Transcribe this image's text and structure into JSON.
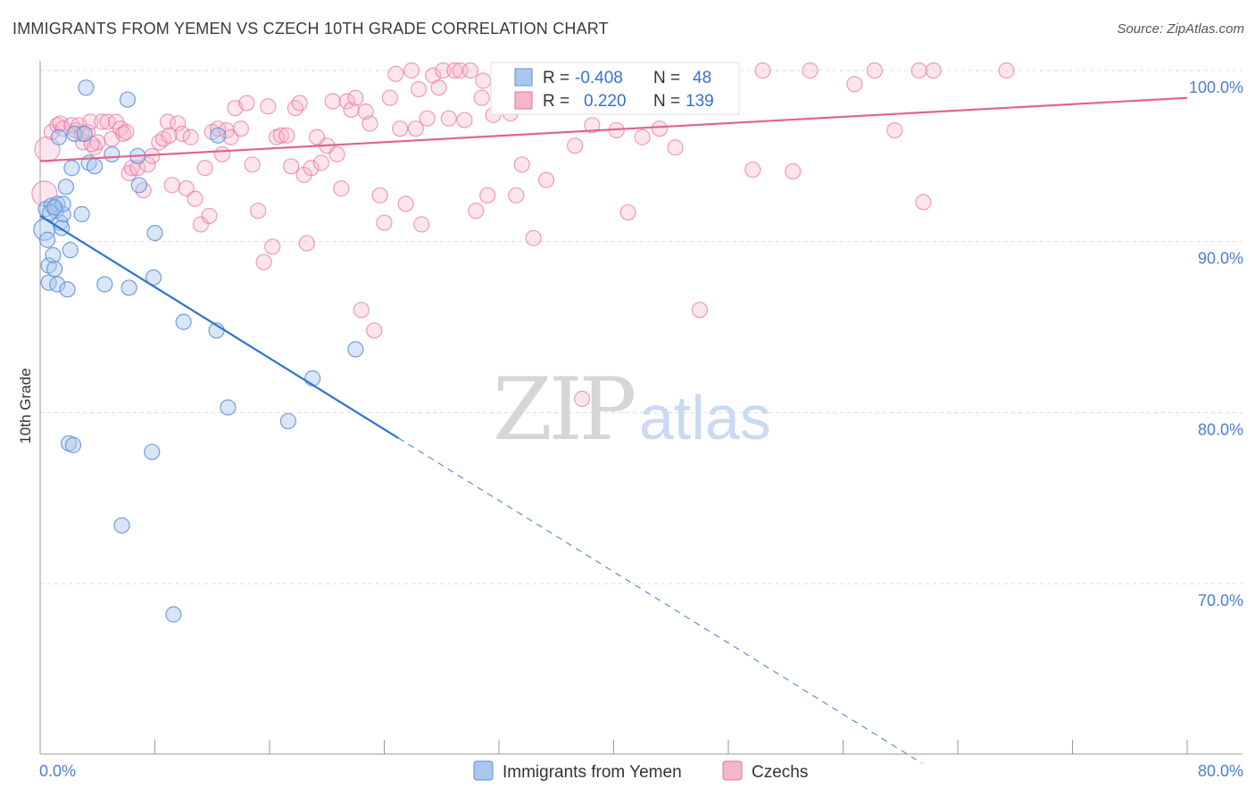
{
  "title": "IMMIGRANTS FROM YEMEN VS CZECH 10TH GRADE CORRELATION CHART",
  "source": "Source: ZipAtlas.com",
  "watermark": {
    "zip": "ZIP",
    "atlas": "atlas"
  },
  "colors": {
    "blue": "#5b8fd8",
    "blue_fill": "#aac8ee",
    "pink": "#e8739a",
    "pink_fill": "#f5b5ca",
    "grid": "#d9d9d9",
    "axis": "#999999",
    "label": "#4a7fcf"
  },
  "legend": {
    "rows": [
      {
        "r_label": "R =",
        "r_value": "-0.408",
        "n_label": "N =",
        "n_value": "48"
      },
      {
        "r_label": "R =",
        "r_value": "0.220",
        "n_label": "N =",
        "n_value": "139"
      }
    ]
  },
  "chart_data": {
    "type": "scatter",
    "title": "IMMIGRANTS FROM YEMEN VS CZECH 10TH GRADE CORRELATION CHART",
    "xlabel": "",
    "ylabel": "10th Grade",
    "xlim": [
      0,
      80
    ],
    "ylim": [
      60,
      100
    ],
    "x_tick_labels": [
      "0.0%",
      "80.0%"
    ],
    "y_tick_labels": [
      "100.0%",
      "90.0%",
      "80.0%",
      "70.0%"
    ],
    "y_ticks": [
      100,
      90,
      80,
      70
    ],
    "series": [
      {
        "name": "Immigrants from Yemen",
        "r": -0.408,
        "n": 48,
        "trend": {
          "x0": 0,
          "y0": 91.5,
          "x1": 25,
          "y1": 78.5,
          "dashed_to_x": 61.5,
          "dashed_to_y": 59.5
        },
        "points": [
          [
            0.3,
            90.7
          ],
          [
            0.4,
            91.9
          ],
          [
            0.5,
            90.1
          ],
          [
            0.6,
            88.6
          ],
          [
            0.6,
            87.6
          ],
          [
            0.8,
            92.1
          ],
          [
            0.9,
            89.2
          ],
          [
            1.0,
            88.4
          ],
          [
            1.1,
            91.8
          ],
          [
            1.2,
            92.2
          ],
          [
            1.2,
            87.5
          ],
          [
            1.3,
            96.1
          ],
          [
            1.4,
            91.1
          ],
          [
            1.5,
            90.8
          ],
          [
            1.6,
            91.6
          ],
          [
            1.6,
            92.2
          ],
          [
            1.8,
            93.2
          ],
          [
            1.9,
            87.2
          ],
          [
            2.0,
            78.2
          ],
          [
            2.1,
            89.5
          ],
          [
            2.2,
            94.3
          ],
          [
            2.3,
            78.1
          ],
          [
            2.4,
            96.3
          ],
          [
            2.9,
            91.6
          ],
          [
            3.1,
            96.3
          ],
          [
            3.2,
            99.0
          ],
          [
            3.4,
            94.6
          ],
          [
            3.8,
            94.4
          ],
          [
            4.5,
            87.5
          ],
          [
            5.0,
            95.1
          ],
          [
            5.7,
            73.4
          ],
          [
            6.1,
            98.3
          ],
          [
            6.2,
            87.3
          ],
          [
            6.8,
            95.0
          ],
          [
            6.9,
            93.3
          ],
          [
            7.8,
            77.7
          ],
          [
            7.9,
            87.9
          ],
          [
            8.0,
            90.5
          ],
          [
            9.3,
            68.2
          ],
          [
            10.0,
            85.3
          ],
          [
            12.3,
            84.8
          ],
          [
            12.4,
            96.2
          ],
          [
            13.1,
            80.3
          ],
          [
            17.3,
            79.5
          ],
          [
            19.0,
            82.0
          ],
          [
            22.0,
            83.7
          ],
          [
            0.7,
            91.7
          ],
          [
            1.0,
            92.0
          ]
        ]
      },
      {
        "name": "Czechs",
        "r": 0.22,
        "n": 139,
        "trend": {
          "x0": 0,
          "y0": 94.7,
          "x1": 80,
          "y1": 98.4
        },
        "points": [
          [
            0.3,
            92.8
          ],
          [
            0.5,
            95.4
          ],
          [
            0.8,
            96.4
          ],
          [
            1.2,
            96.8
          ],
          [
            1.4,
            96.9
          ],
          [
            1.6,
            96.6
          ],
          [
            2.2,
            96.8
          ],
          [
            2.5,
            96.5
          ],
          [
            2.7,
            96.8
          ],
          [
            2.9,
            96.3
          ],
          [
            3.0,
            95.8
          ],
          [
            3.3,
            96.4
          ],
          [
            3.5,
            97.0
          ],
          [
            3.8,
            95.5
          ],
          [
            4.0,
            95.8
          ],
          [
            4.3,
            97.0
          ],
          [
            4.7,
            97.0
          ],
          [
            5.0,
            96.0
          ],
          [
            5.3,
            97.0
          ],
          [
            5.6,
            96.6
          ],
          [
            5.8,
            96.3
          ],
          [
            6.2,
            94.0
          ],
          [
            6.4,
            94.3
          ],
          [
            6.8,
            94.3
          ],
          [
            7.2,
            93.0
          ],
          [
            7.5,
            94.5
          ],
          [
            7.8,
            95.0
          ],
          [
            8.3,
            95.8
          ],
          [
            8.6,
            96.0
          ],
          [
            8.9,
            97.0
          ],
          [
            9.2,
            93.3
          ],
          [
            9.6,
            96.9
          ],
          [
            9.9,
            96.3
          ],
          [
            10.2,
            93.1
          ],
          [
            10.5,
            96.1
          ],
          [
            10.8,
            92.5
          ],
          [
            11.2,
            91.0
          ],
          [
            11.5,
            94.3
          ],
          [
            11.8,
            91.5
          ],
          [
            12.0,
            96.4
          ],
          [
            12.4,
            96.6
          ],
          [
            12.7,
            95.1
          ],
          [
            13.0,
            96.5
          ],
          [
            13.3,
            96.1
          ],
          [
            13.6,
            97.8
          ],
          [
            14.0,
            96.6
          ],
          [
            14.4,
            98.1
          ],
          [
            14.8,
            94.5
          ],
          [
            15.2,
            91.8
          ],
          [
            15.6,
            88.8
          ],
          [
            15.9,
            97.9
          ],
          [
            16.2,
            89.7
          ],
          [
            16.5,
            96.1
          ],
          [
            16.8,
            96.2
          ],
          [
            17.2,
            96.2
          ],
          [
            17.5,
            94.4
          ],
          [
            17.8,
            97.8
          ],
          [
            18.1,
            98.1
          ],
          [
            18.4,
            93.9
          ],
          [
            18.6,
            89.9
          ],
          [
            18.9,
            94.3
          ],
          [
            19.3,
            96.1
          ],
          [
            19.6,
            94.6
          ],
          [
            20.0,
            95.6
          ],
          [
            20.4,
            98.2
          ],
          [
            20.7,
            95.1
          ],
          [
            21.0,
            93.1
          ],
          [
            21.4,
            98.2
          ],
          [
            21.7,
            97.7
          ],
          [
            22.0,
            98.4
          ],
          [
            22.4,
            86.0
          ],
          [
            22.7,
            97.6
          ],
          [
            23.0,
            96.9
          ],
          [
            23.3,
            84.8
          ],
          [
            23.7,
            92.7
          ],
          [
            24.0,
            91.1
          ],
          [
            24.4,
            98.4
          ],
          [
            24.8,
            99.8
          ],
          [
            25.1,
            96.6
          ],
          [
            25.5,
            92.2
          ],
          [
            25.9,
            100.0
          ],
          [
            26.2,
            96.6
          ],
          [
            26.6,
            91.0
          ],
          [
            27.0,
            97.2
          ],
          [
            27.4,
            99.7
          ],
          [
            27.8,
            99.0
          ],
          [
            28.1,
            100.0
          ],
          [
            28.5,
            97.2
          ],
          [
            28.9,
            100.0
          ],
          [
            29.3,
            100.0
          ],
          [
            29.6,
            97.1
          ],
          [
            30.0,
            100.0
          ],
          [
            30.4,
            91.8
          ],
          [
            30.8,
            98.4
          ],
          [
            31.2,
            92.7
          ],
          [
            31.6,
            97.4
          ],
          [
            32.0,
            100.0
          ],
          [
            32.4,
            99.8
          ],
          [
            32.8,
            97.5
          ],
          [
            33.2,
            92.7
          ],
          [
            33.6,
            94.5
          ],
          [
            34.0,
            100.0
          ],
          [
            34.4,
            90.2
          ],
          [
            34.8,
            100.0
          ],
          [
            35.3,
            93.6
          ],
          [
            36.0,
            100.0
          ],
          [
            37.3,
            95.6
          ],
          [
            37.8,
            80.8
          ],
          [
            38.5,
            96.8
          ],
          [
            40.2,
            96.5
          ],
          [
            40.6,
            100.0
          ],
          [
            41.0,
            91.7
          ],
          [
            42.0,
            96.1
          ],
          [
            43.2,
            96.6
          ],
          [
            44.3,
            95.5
          ],
          [
            46.0,
            86.0
          ],
          [
            47.2,
            99.2
          ],
          [
            47.5,
            100.0
          ],
          [
            49.7,
            94.2
          ],
          [
            50.4,
            100.0
          ],
          [
            52.5,
            94.1
          ],
          [
            53.7,
            100.0
          ],
          [
            56.8,
            99.2
          ],
          [
            58.2,
            100.0
          ],
          [
            59.6,
            96.5
          ],
          [
            61.3,
            100.0
          ],
          [
            61.6,
            92.3
          ],
          [
            62.3,
            100.0
          ],
          [
            67.4,
            100.0
          ],
          [
            6.0,
            96.4
          ],
          [
            9.0,
            96.2
          ],
          [
            3.6,
            95.7
          ],
          [
            26.4,
            98.9
          ],
          [
            33.0,
            98.2
          ],
          [
            30.9,
            99.4
          ]
        ]
      }
    ],
    "bottom_legend": [
      "Immigrants from Yemen",
      "Czechs"
    ]
  }
}
